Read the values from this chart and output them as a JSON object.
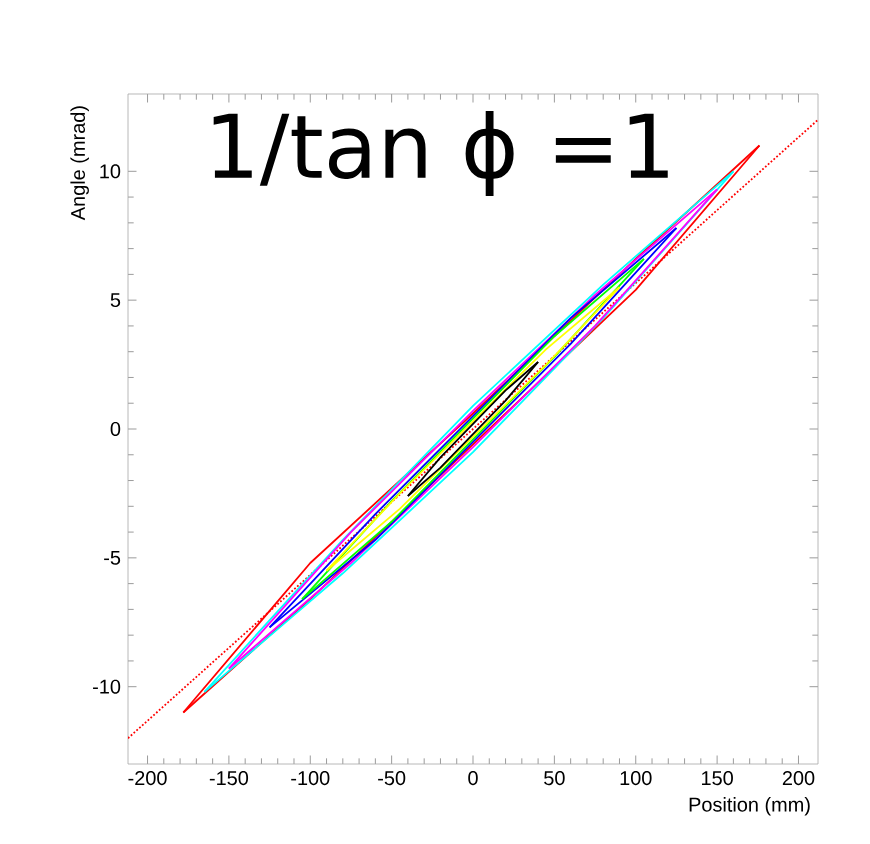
{
  "chart_data": {
    "type": "line",
    "xlabel": "Position (mm)",
    "ylabel": "Angle (mrad)",
    "annotations": [
      "1/tan ϕ =1"
    ],
    "xlim": [
      -212,
      212
    ],
    "ylim": [
      -13,
      13
    ],
    "xticks": [
      -200,
      -150,
      -100,
      -50,
      0,
      50,
      100,
      150,
      200
    ],
    "yticks": [
      -10,
      -5,
      0,
      5,
      10
    ],
    "grid": false,
    "marker": "none",
    "line_style": "solid",
    "series": [
      {
        "color": "#ff0000",
        "line_style": "dotted",
        "x": [
          -212,
          212
        ],
        "values": [
          -12,
          12
        ]
      },
      {
        "color": "#ff0000",
        "x": [
          -178,
          -100,
          0,
          100,
          176
        ],
        "values": [
          -11,
          -5.2,
          0.6,
          6.6,
          11
        ]
      },
      {
        "color": "#ff0000",
        "x": [
          -178,
          -100,
          0,
          100,
          176
        ],
        "values": [
          -11,
          -6.6,
          -0.6,
          5.4,
          11
        ]
      },
      {
        "color": "#00ffff",
        "x": [
          -165,
          -80,
          0,
          80,
          160
        ],
        "values": [
          -10.2,
          -4.3,
          0.9,
          5.6,
          10
        ]
      },
      {
        "color": "#00ffff",
        "x": [
          -165,
          -80,
          0,
          80,
          160
        ],
        "values": [
          -10.2,
          -5.6,
          -0.9,
          4.3,
          10
        ]
      },
      {
        "color": "#ff00ff",
        "x": [
          -150,
          -75,
          0,
          75,
          150
        ],
        "values": [
          -9.3,
          -4.0,
          0.7,
          5.2,
          9.3
        ]
      },
      {
        "color": "#ff00ff",
        "x": [
          -150,
          -75,
          0,
          75,
          150
        ],
        "values": [
          -9.3,
          -5.2,
          -0.7,
          4.0,
          9.3
        ]
      },
      {
        "color": "#0000ff",
        "x": [
          -125,
          -60,
          0,
          60,
          125
        ],
        "values": [
          -7.7,
          -3.3,
          0.5,
          4.3,
          7.8
        ]
      },
      {
        "color": "#0000ff",
        "x": [
          -125,
          -60,
          0,
          60,
          125
        ],
        "values": [
          -7.7,
          -4.3,
          -0.5,
          3.3,
          7.8
        ]
      },
      {
        "color": "#00ff00",
        "x": [
          -105,
          -50,
          0,
          50,
          105
        ],
        "values": [
          -6.6,
          -2.8,
          0.4,
          3.6,
          6.6
        ]
      },
      {
        "color": "#00ff00",
        "x": [
          -105,
          -50,
          0,
          50,
          105
        ],
        "values": [
          -6.6,
          -3.6,
          -0.4,
          2.8,
          6.6
        ]
      },
      {
        "color": "#ffff00",
        "x": [
          -90,
          -45,
          0,
          45,
          90
        ],
        "values": [
          -5.5,
          -2.5,
          0.3,
          3.1,
          5.5
        ]
      },
      {
        "color": "#ffff00",
        "x": [
          -90,
          -45,
          0,
          45,
          90
        ],
        "values": [
          -5.5,
          -3.1,
          -0.3,
          2.5,
          5.5
        ]
      },
      {
        "color": "#000000",
        "x": [
          -40,
          -20,
          0,
          20,
          40
        ],
        "values": [
          -2.6,
          -1.1,
          0.2,
          1.5,
          2.6
        ]
      },
      {
        "color": "#000000",
        "x": [
          -40,
          -20,
          0,
          20,
          40
        ],
        "values": [
          -2.6,
          -1.5,
          -0.2,
          1.1,
          2.6
        ]
      }
    ]
  }
}
